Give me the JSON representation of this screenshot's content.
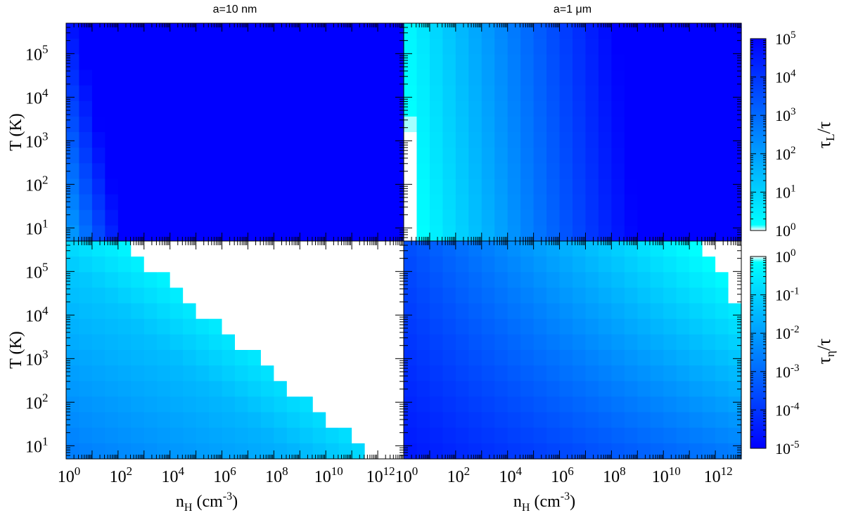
{
  "chart_data": {
    "type": "heatmap",
    "columns": [
      {
        "title": "a=10 nm"
      },
      {
        "title": "a=1 μm"
      }
    ],
    "x_axis": {
      "label_main": "n",
      "label_sub": "H",
      "label_unit": " (cm",
      "label_unit_sup": "-3",
      "label_close": ")",
      "scale": "log",
      "range": [
        1,
        10000000000000.0
      ],
      "tick_exponents": [
        "0",
        "2",
        "4",
        "6",
        "8",
        "10",
        "12"
      ]
    },
    "y_axis": {
      "label": "T (K)",
      "scale": "log",
      "range": [
        5,
        500000.0
      ],
      "tick_exponents": [
        "1",
        "2",
        "3",
        "4",
        "5"
      ]
    },
    "colorbars": [
      {
        "row": "top",
        "label_main": "τ",
        "label_sub": "L",
        "label_rest": "/τ",
        "scale": "log",
        "range": [
          1,
          100000.0
        ],
        "tick_exponents": [
          "0",
          "1",
          "2",
          "3",
          "4",
          "5"
        ],
        "color_low": "#ffffff",
        "color_mid": "#00ffff",
        "color_high": "#0000ff"
      },
      {
        "row": "bottom",
        "label_main": "τ",
        "label_sub": "η",
        "label_rest": "/τ",
        "scale": "log",
        "range": [
          1e-05,
          1
        ],
        "tick_exponents": [
          "-5",
          "-4",
          "-3",
          "-2",
          "-1",
          "0"
        ],
        "color_low": "#0000ff",
        "color_mid": "#00ffff",
        "color_high": "#ffffff"
      }
    ]
  }
}
